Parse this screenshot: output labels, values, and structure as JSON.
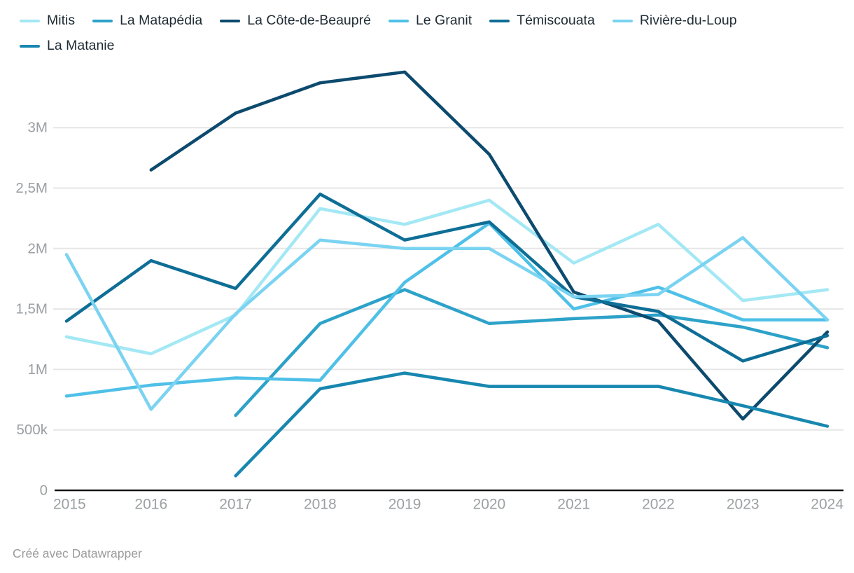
{
  "footer": {
    "attribution": "Créé avec Datawrapper"
  },
  "colors": {
    "background": "#ffffff",
    "grid": "#e6e6e6",
    "axis_line": "#151515",
    "axis_text": "#9ba0a3",
    "legend_text": "#1e2b33",
    "footer_text": "#9a9a9a"
  },
  "chart_data": {
    "type": "line",
    "title": "",
    "xlabel": "",
    "ylabel": "",
    "unit": "millions",
    "x": [
      2015,
      2016,
      2017,
      2018,
      2019,
      2020,
      2021,
      2022,
      2023,
      2024
    ],
    "x_tick_labels": [
      "2015",
      "2016",
      "2017",
      "2018",
      "2019",
      "2020",
      "2021",
      "2022",
      "2023",
      "2024"
    ],
    "y_ticks": [
      {
        "value": 0,
        "label": "0"
      },
      {
        "value": 0.5,
        "label": "500k"
      },
      {
        "value": 1,
        "label": "1M"
      },
      {
        "value": 1.5,
        "label": "1,5M"
      },
      {
        "value": 2,
        "label": "2M"
      },
      {
        "value": 2.5,
        "label": "2,5M"
      },
      {
        "value": 3,
        "label": "3M"
      }
    ],
    "ylim": [
      0,
      3.55
    ],
    "grid": "horizontal",
    "legend_position": "top-left",
    "series": [
      {
        "name": "Mitis",
        "color": "#a3e8f4",
        "values": [
          1.27,
          1.13,
          1.45,
          2.33,
          2.2,
          2.4,
          1.88,
          2.2,
          1.57,
          1.66
        ]
      },
      {
        "name": "La Matapédia",
        "color": "#2da2c9",
        "values": [
          null,
          null,
          0.62,
          1.38,
          1.66,
          1.38,
          1.42,
          1.45,
          1.35,
          1.18
        ]
      },
      {
        "name": "La Côte-de-Beaupré",
        "color": "#0c4a6e",
        "values": [
          null,
          2.65,
          3.12,
          3.37,
          3.46,
          2.78,
          1.64,
          1.4,
          0.59,
          1.31
        ]
      },
      {
        "name": "Le Granit",
        "color": "#4fc0e7",
        "values": [
          0.78,
          0.87,
          0.93,
          0.91,
          1.72,
          2.21,
          1.5,
          1.68,
          1.41,
          1.41
        ]
      },
      {
        "name": "Témiscouata",
        "color": "#0e6e96",
        "values": [
          1.4,
          1.9,
          1.67,
          2.45,
          2.07,
          2.22,
          1.6,
          1.48,
          1.07,
          1.28
        ]
      },
      {
        "name": "Rivière-du-Loup",
        "color": "#7ad3f1",
        "values": [
          1.95,
          0.67,
          1.46,
          2.07,
          2.0,
          2.0,
          1.6,
          1.62,
          2.09,
          1.41
        ]
      },
      {
        "name": "La Matanie",
        "color": "#1787b0",
        "values": [
          null,
          null,
          0.12,
          0.84,
          0.97,
          0.86,
          0.86,
          0.86,
          0.7,
          0.53
        ]
      }
    ]
  }
}
